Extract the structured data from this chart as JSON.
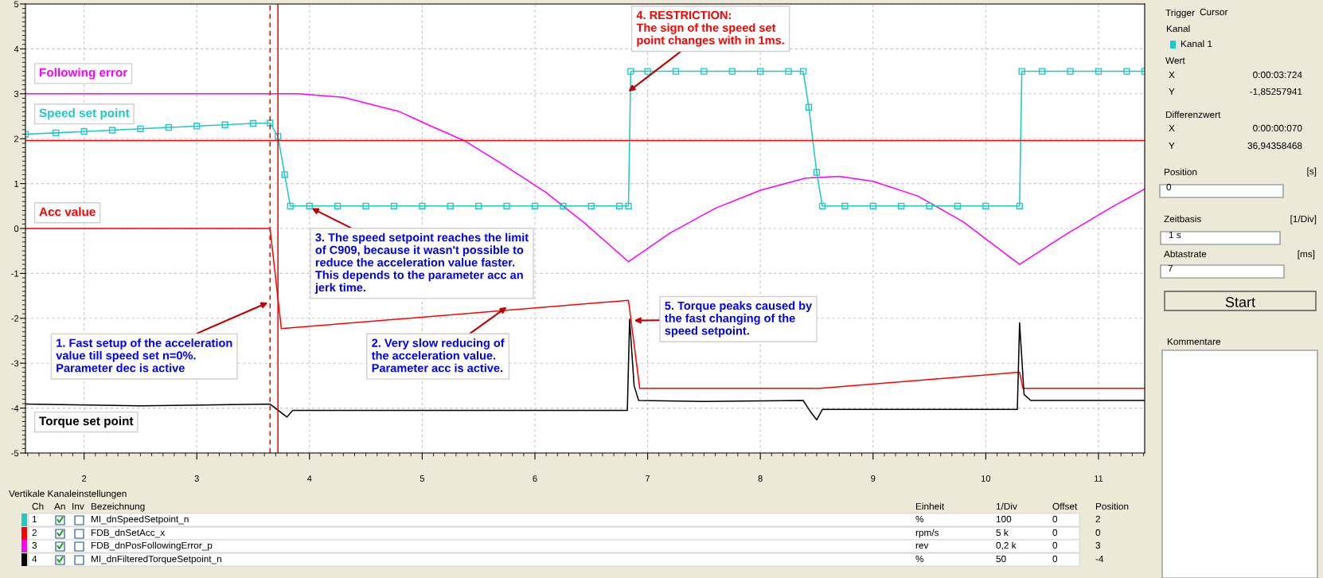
{
  "chart_data": {
    "type": "line",
    "xlim": [
      1.48,
      11.41
    ],
    "ylim": [
      -5,
      5
    ],
    "xticks": [
      2,
      3,
      4,
      5,
      6,
      7,
      8,
      9,
      10,
      11
    ],
    "yticks": [
      -5,
      -4,
      -3,
      -2,
      -1,
      0,
      1,
      2,
      3,
      4,
      5
    ],
    "grid": true,
    "legend": false,
    "series": [
      {
        "name": "Following error",
        "color": "#ff00ff",
        "x": [
          1.48,
          2.5,
          3.5,
          3.9,
          4.3,
          4.8,
          5.06,
          5.37,
          5.7,
          6.1,
          6.45,
          6.83,
          7.2,
          7.6,
          8.0,
          8.4,
          8.7,
          9.0,
          9.4,
          9.8,
          10.3,
          10.7,
          11.1,
          11.41
        ],
        "values": [
          3.0,
          3.0,
          3.0,
          3.0,
          2.92,
          2.6,
          2.3,
          1.96,
          1.45,
          0.8,
          0.1,
          -0.74,
          -0.1,
          0.45,
          0.85,
          1.12,
          1.16,
          1.05,
          0.72,
          0.15,
          -0.8,
          -0.15,
          0.45,
          0.88
        ]
      },
      {
        "name": "Speed set point",
        "color": "#20c8c8",
        "marker": "square",
        "x": [
          1.48,
          1.75,
          2.0,
          2.25,
          2.5,
          2.75,
          3.0,
          3.25,
          3.5,
          3.65,
          3.72,
          3.78,
          3.83,
          4.0,
          4.25,
          4.5,
          4.75,
          5.0,
          5.25,
          5.5,
          5.75,
          6.0,
          6.25,
          6.5,
          6.75,
          6.83,
          6.85,
          7.0,
          7.25,
          7.5,
          7.75,
          8.0,
          8.25,
          8.38,
          8.43,
          8.5,
          8.55,
          8.75,
          9.0,
          9.25,
          9.5,
          9.75,
          10.0,
          10.3,
          10.32,
          10.5,
          10.75,
          11.0,
          11.25,
          11.41
        ],
        "values": [
          2.1,
          2.13,
          2.16,
          2.19,
          2.22,
          2.25,
          2.28,
          2.31,
          2.34,
          2.35,
          2.05,
          1.2,
          0.5,
          0.5,
          0.5,
          0.5,
          0.5,
          0.5,
          0.5,
          0.5,
          0.5,
          0.5,
          0.5,
          0.5,
          0.5,
          0.5,
          3.5,
          3.5,
          3.5,
          3.5,
          3.5,
          3.5,
          3.5,
          3.5,
          2.7,
          1.25,
          0.5,
          0.5,
          0.5,
          0.5,
          0.5,
          0.5,
          0.5,
          0.5,
          3.5,
          3.5,
          3.5,
          3.5,
          3.5,
          3.5
        ]
      },
      {
        "name": "Acc value",
        "color": "#ff0000",
        "x": [
          1.48,
          3.65,
          3.75,
          6.83,
          6.93,
          8.53,
          10.3,
          10.33,
          11.41
        ],
        "values": [
          0,
          0,
          -2.23,
          -1.6,
          -3.56,
          -3.56,
          -3.2,
          -3.56,
          -3.56
        ]
      },
      {
        "name": "Torque set point",
        "color": "#000000",
        "x": [
          1.48,
          2.5,
          3.65,
          3.8,
          3.85,
          5.0,
          6.82,
          6.84,
          6.88,
          6.92,
          7.5,
          8.38,
          8.45,
          8.5,
          8.55,
          9.5,
          10.28,
          10.3,
          10.34,
          10.4,
          11.41
        ],
        "values": [
          -3.91,
          -3.95,
          -3.91,
          -4.2,
          -4.05,
          -4.05,
          -4.05,
          -2.02,
          -3.5,
          -3.83,
          -3.85,
          -3.83,
          -4.1,
          -4.26,
          -4.03,
          -4.03,
          -4.03,
          -2.1,
          -3.7,
          -3.83,
          -3.83
        ]
      }
    ],
    "ref_lines": [
      {
        "axis": "y",
        "value": 1.96,
        "color": "#ff0000",
        "line_style": "solid"
      },
      {
        "axis": "x",
        "value": 3.72,
        "color": "#ff0000",
        "line_style": "solid"
      },
      {
        "axis": "x",
        "value": 3.65,
        "color": "#ff0000",
        "line_style": "dashed"
      }
    ],
    "annotations": [
      {
        "text": "1. Fast setup of the acceleration\nvalue till speed set n=0%.\nParameter dec is active",
        "x": 3.63,
        "y": -1.65
      },
      {
        "text": "2. Very slow reducing of\nthe acceleration value.\nParameter acc is active.",
        "x": 5.75,
        "y": -1.75
      },
      {
        "text": "3. The speed setpoint reaches the limit\nof C909, because it wasn't possible to\nreduce the acceleration value faster.\nThis depends to the parameter acc an\njerk time.",
        "x": 4.02,
        "y": 0.45
      },
      {
        "text": "4. RESTRICTION:\nThe sign of the speed set\npoint changes with in 1ms.",
        "x": 6.83,
        "y": 3.05
      },
      {
        "text": "5. Torque peaks caused by\nthe fast changing of the\nspeed setpoint.",
        "x": 6.88,
        "y": -2.05
      },
      "Trigger",
      "Cursor",
      "Kanal",
      "Kanal 1",
      "Wert",
      "X",
      "0:00:03:724",
      "Y",
      "-1,85257941",
      "Differenzwert",
      "X",
      "0:00:00:070",
      "Y",
      "36,94358468",
      "Position",
      "[s]",
      "0",
      "Zeitbasis",
      "[1/Div]",
      "1 s",
      "Abtastrate",
      "[ms]",
      "7",
      "Start",
      "Kommentare",
      "Vertikale Kanaleinstellungen",
      "Ch",
      "An",
      "Inv",
      "Bezeichnung",
      "Einheit",
      "1/Div",
      "Offset",
      "Position",
      "1",
      "MI_dnSpeedSetpoint_n",
      "%",
      "100",
      "0",
      "2",
      "2",
      "FDB_dnSetAcc_x",
      "rpm/s",
      "5 k",
      "0",
      "0",
      "3",
      "FDB_dnPosFollowingError_p",
      "rev",
      "0,2 k",
      "0",
      "3",
      "4",
      "MI_dnFilteredTorqueSetpoint_n",
      "%",
      "50",
      "0",
      "-4"
    ]
  }
}
